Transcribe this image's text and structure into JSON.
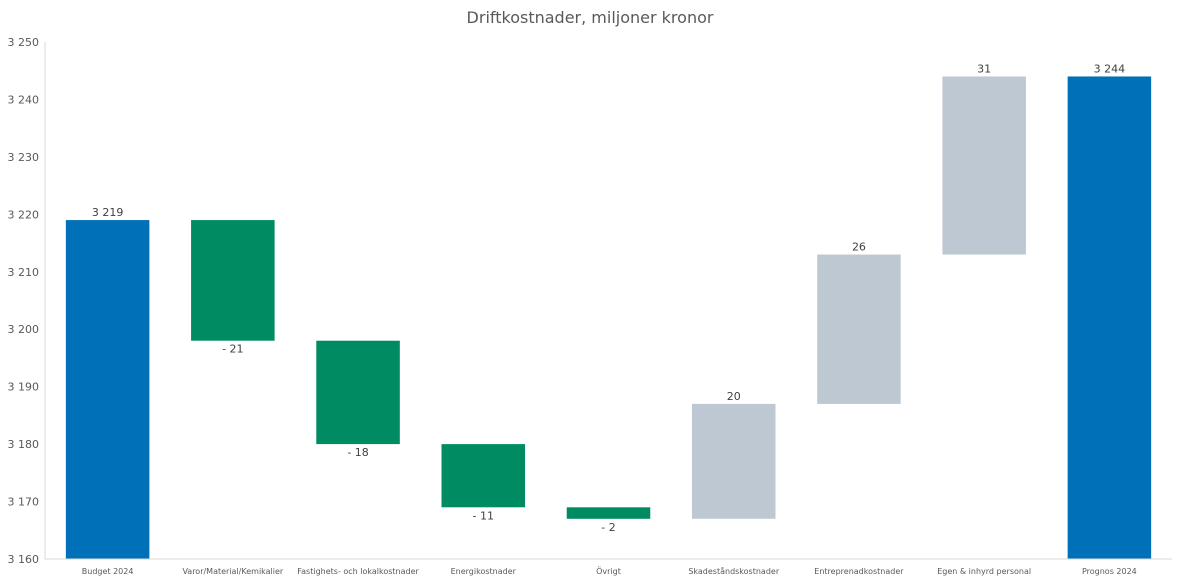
{
  "chart_data": {
    "type": "bar",
    "subtype": "waterfall",
    "title": "Driftkostnader, miljoner kronor",
    "xlabel": "",
    "ylabel": "",
    "ylim": [
      3160,
      3250
    ],
    "yticks": [
      3160,
      3170,
      3180,
      3190,
      3200,
      3210,
      3220,
      3230,
      3240,
      3250
    ],
    "ytick_labels": [
      "3 160",
      "3 170",
      "3 180",
      "3 190",
      "3 200",
      "3 210",
      "3 220",
      "3 230",
      "3 240",
      "3 250"
    ],
    "grid": false,
    "legend": "none",
    "categories": [
      "Budget 2024",
      "Varor/Material/Kemikalier",
      "Fastighets- och lokalkostnader",
      "Energikostnader",
      "Övrigt",
      "Skadeståndskostnader",
      "Entreprenadkostnader",
      "Egen & inhyrd personal",
      "Prognos 2024"
    ],
    "kinds": [
      "total",
      "decrease",
      "decrease",
      "decrease",
      "decrease",
      "increase",
      "increase",
      "increase",
      "total"
    ],
    "values": [
      3219,
      -21,
      -18,
      -11,
      -2,
      20,
      26,
      31,
      3244
    ],
    "data_labels": [
      "3 219",
      "- 21",
      "- 18",
      "- 11",
      "- 2",
      "20",
      "26",
      "31",
      "3 244"
    ],
    "colors": {
      "total": "#0070B8",
      "decrease": "#008B63",
      "increase": "#BEC8D2",
      "text": "#404040",
      "axis": "#D9D9D9"
    }
  }
}
